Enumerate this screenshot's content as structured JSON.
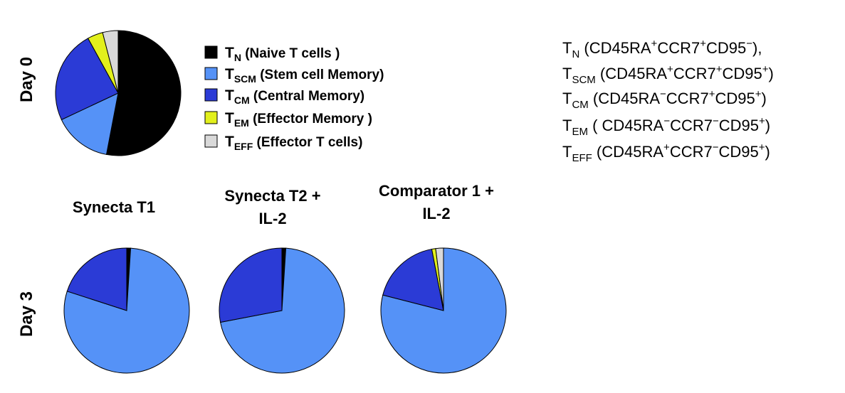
{
  "row_labels": [
    "Day 0",
    "Day 3"
  ],
  "legend": [
    {
      "symbol": "T",
      "sub": "N",
      "text": " (Naive T cells )",
      "color": "#000000"
    },
    {
      "symbol": "T",
      "sub": "SCM",
      "text": "  (Stem cell Memory)",
      "color": "#5592f7"
    },
    {
      "symbol": "T",
      "sub": "CM",
      "text": "  (Central Memory)",
      "color": "#2b3bd6"
    },
    {
      "symbol": "T",
      "sub": "EM",
      "text": "  (Effector Memory )",
      "color": "#e2f01c"
    },
    {
      "symbol": "T",
      "sub": "EFF",
      "text": "  (Effector T cells)",
      "color": "#d9d9d9"
    }
  ],
  "notes": [
    [
      [
        "T",
        ""
      ],
      [
        "N",
        "sub"
      ],
      [
        " (CD45RA",
        ""
      ],
      [
        "+",
        "sup"
      ],
      [
        "CCR7",
        ""
      ],
      [
        "+",
        "sup"
      ],
      [
        "CD95",
        ""
      ],
      [
        "−",
        "sup"
      ],
      [
        "),",
        ""
      ]
    ],
    [
      [
        "T",
        ""
      ],
      [
        "SCM",
        "sub"
      ],
      [
        " (CD45RA",
        ""
      ],
      [
        "+",
        "sup"
      ],
      [
        "CCR7",
        ""
      ],
      [
        "+",
        "sup"
      ],
      [
        "CD95",
        ""
      ],
      [
        "+",
        "sup"
      ],
      [
        ")",
        ""
      ]
    ],
    [
      [
        "T",
        ""
      ],
      [
        "CM",
        "sub"
      ],
      [
        " (CD45RA",
        ""
      ],
      [
        "−",
        "sup"
      ],
      [
        "CCR7",
        ""
      ],
      [
        "+",
        "sup"
      ],
      [
        "CD95",
        ""
      ],
      [
        "+",
        "sup"
      ],
      [
        ")",
        ""
      ]
    ],
    [
      [
        "T",
        ""
      ],
      [
        "EM",
        "sub"
      ],
      [
        " ( CD45RA",
        ""
      ],
      [
        "−",
        "sup"
      ],
      [
        "CCR7",
        ""
      ],
      [
        "−",
        "sup"
      ],
      [
        "CD95",
        ""
      ],
      [
        "+",
        "sup"
      ],
      [
        ")",
        ""
      ]
    ],
    [
      [
        "T",
        ""
      ],
      [
        "EFF",
        "sub"
      ],
      [
        " (CD45RA",
        ""
      ],
      [
        "+",
        "sup"
      ],
      [
        "CCR7",
        ""
      ],
      [
        "−",
        "sup"
      ],
      [
        "CD95",
        ""
      ],
      [
        "+",
        "sup"
      ],
      [
        ")",
        ""
      ]
    ]
  ],
  "chart_data": [
    {
      "type": "pie",
      "values": [
        53,
        15,
        24,
        4,
        4
      ]
    },
    {
      "type": "pie",
      "title": [
        "Synecta T1"
      ],
      "values": [
        1,
        79,
        20,
        0,
        0
      ]
    },
    {
      "type": "pie",
      "title": [
        "Synecta T2 +",
        "IL-2"
      ],
      "values": [
        1,
        71,
        28,
        0,
        0
      ]
    },
    {
      "type": "pie",
      "title": [
        "Comparator 1 +",
        "IL-2"
      ],
      "values": [
        0,
        79,
        18,
        1,
        2
      ]
    }
  ]
}
